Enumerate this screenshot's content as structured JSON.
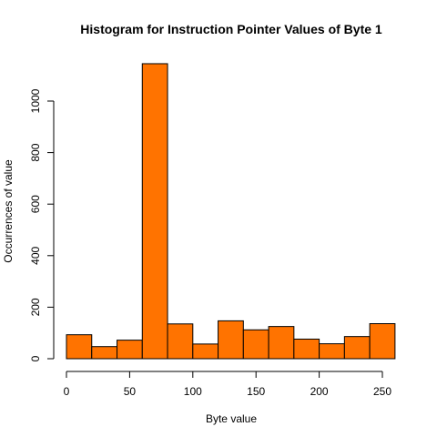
{
  "chart_data": {
    "type": "bar",
    "title": "Histogram for Instruction Pointer Values of Byte 1",
    "xlabel": "Byte value",
    "ylabel": "Occurrences of value",
    "bin_edges": [
      0,
      20,
      40,
      60,
      80,
      100,
      120,
      140,
      160,
      180,
      200,
      220,
      240,
      260
    ],
    "values": [
      93,
      47,
      72,
      1145,
      135,
      57,
      147,
      112,
      125,
      76,
      58,
      86,
      136
    ],
    "xlim": [
      0,
      260
    ],
    "ylim": [
      0,
      1150
    ],
    "x_ticks": [
      0,
      50,
      100,
      150,
      200,
      250
    ],
    "y_ticks": [
      0,
      200,
      400,
      600,
      800,
      1000
    ],
    "bar_color": "#ff7300",
    "grid": false,
    "legend": "none"
  }
}
